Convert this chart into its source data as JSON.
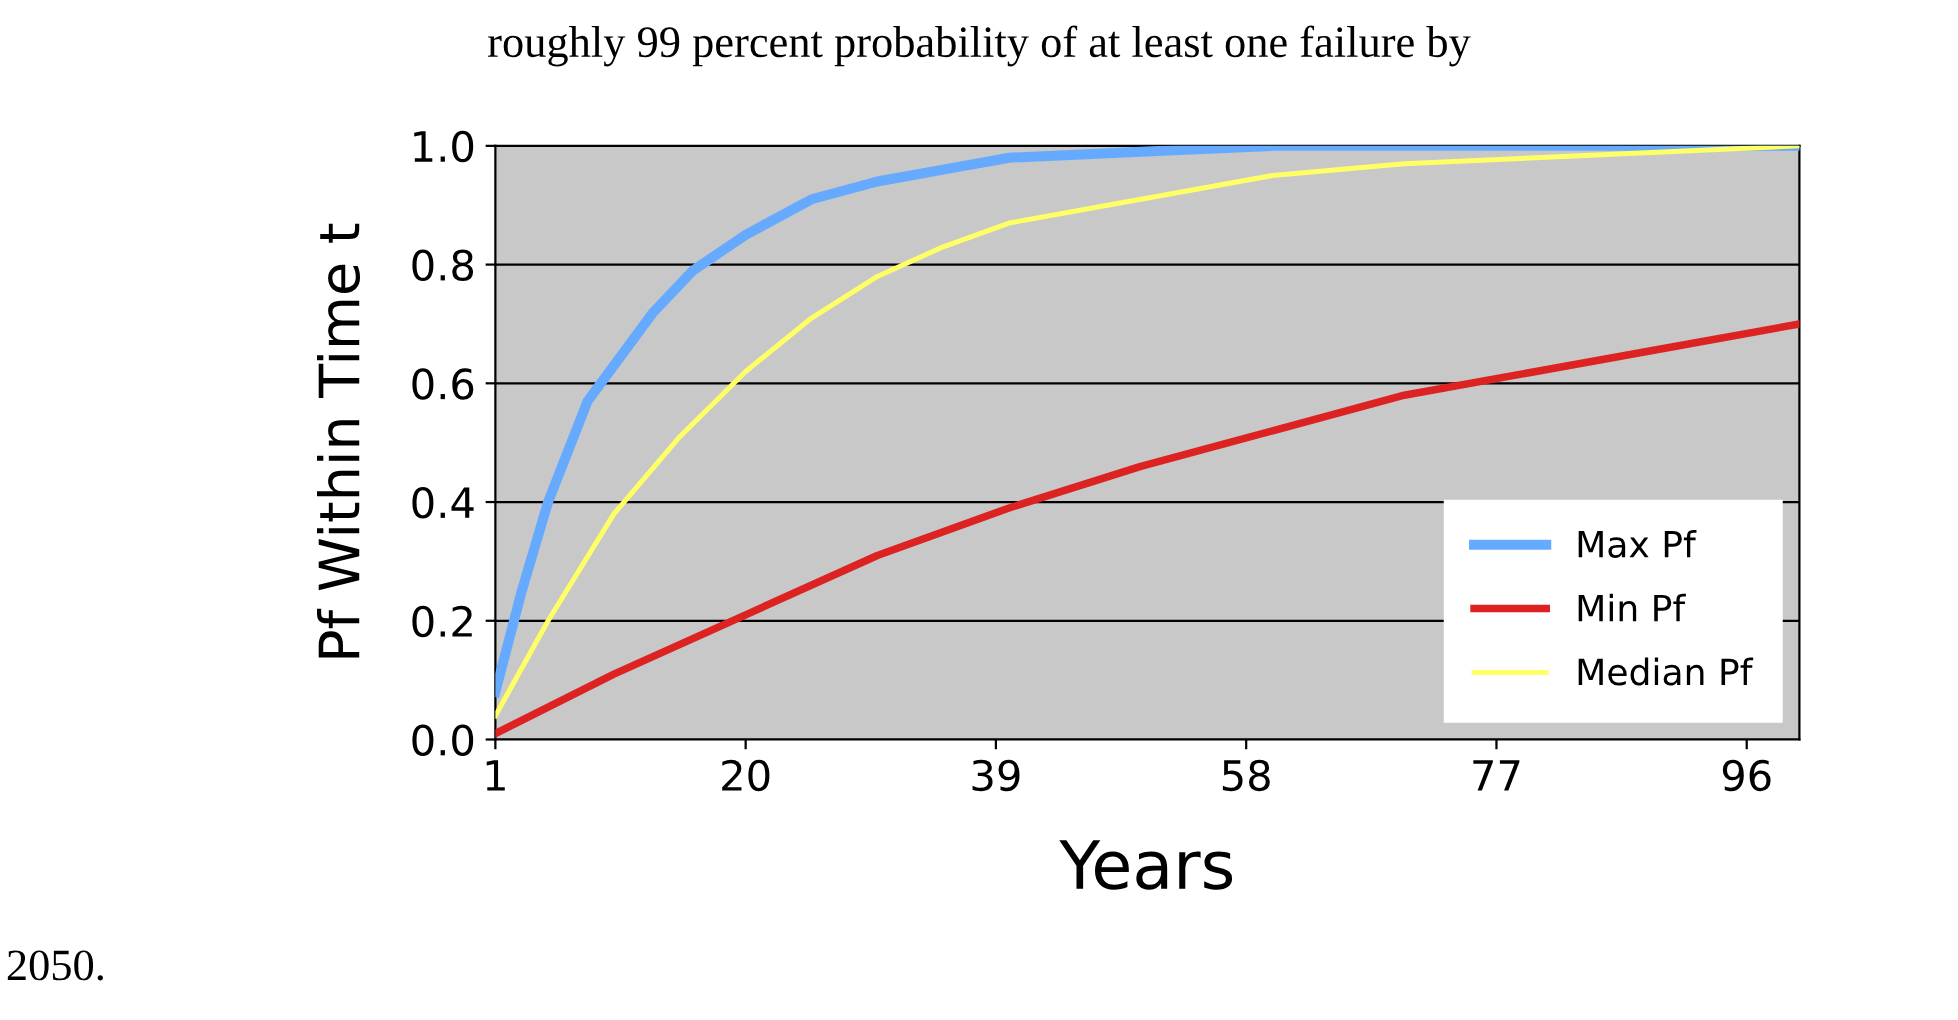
{
  "chart_data": {
    "type": "line",
    "annotations": [
      "roughly 99 percent probability of at least one failure by",
      "2050."
    ],
    "xlabel": "Years",
    "ylabel": "Pf Within Time t",
    "xlim": [
      1,
      100
    ],
    "xticks": [
      1,
      20,
      39,
      58,
      77,
      96
    ],
    "ylim": [
      0,
      1
    ],
    "yticks": [
      {
        "value": 0,
        "label": "0.0"
      },
      {
        "value": 0.2,
        "label": "0.2"
      },
      {
        "value": 0.4,
        "label": "0.4"
      },
      {
        "value": 0.6,
        "label": "0.6"
      },
      {
        "value": 0.8,
        "label": "0.8"
      },
      {
        "value": 1,
        "label": "1.0"
      }
    ],
    "grid": "y",
    "legend": "bottom right",
    "marker": "none",
    "line_style": "solid",
    "series": [
      {
        "name": "Max Pf",
        "color": "#66aaff",
        "x": [
          1,
          3,
          5,
          8,
          10,
          13,
          16,
          20,
          25,
          30,
          35,
          40,
          50,
          60,
          100
        ],
        "values": [
          0.08,
          0.25,
          0.4,
          0.57,
          0.63,
          0.72,
          0.79,
          0.85,
          0.91,
          0.94,
          0.96,
          0.98,
          0.99,
          1.0,
          1.0
        ]
      },
      {
        "name": "Min Pf",
        "color": "#dd2222",
        "x": [
          1,
          10,
          20,
          30,
          40,
          50,
          60,
          70,
          80,
          90,
          100
        ],
        "values": [
          0.01,
          0.11,
          0.21,
          0.31,
          0.39,
          0.46,
          0.52,
          0.58,
          0.62,
          0.66,
          0.7
        ]
      },
      {
        "name": "Median Pf",
        "color": "#ffff66",
        "x": [
          1,
          5,
          10,
          15,
          20,
          25,
          30,
          35,
          40,
          50,
          60,
          70,
          80,
          90,
          100
        ],
        "values": [
          0.04,
          0.2,
          0.38,
          0.51,
          0.62,
          0.71,
          0.78,
          0.83,
          0.87,
          0.91,
          0.95,
          0.97,
          0.98,
          0.99,
          1.0
        ]
      }
    ]
  }
}
